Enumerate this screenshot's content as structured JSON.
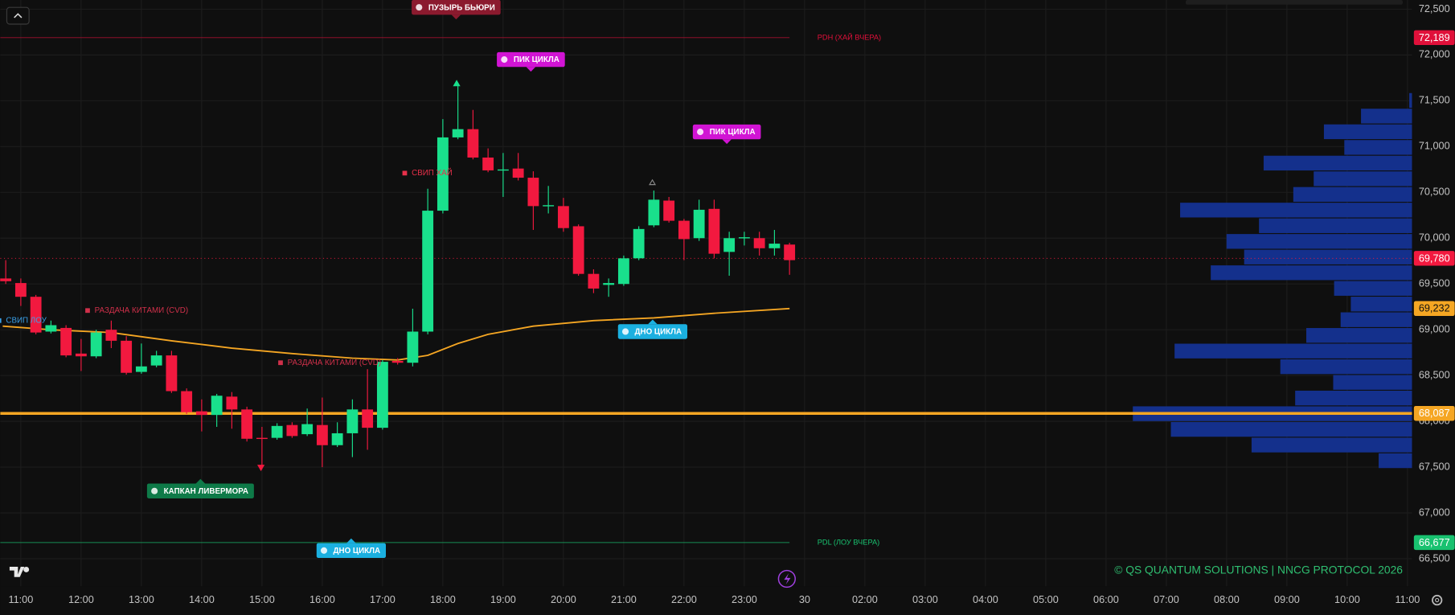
{
  "chart_data": {
    "type": "candlestick",
    "xlim": [
      10.66,
      34.075
    ],
    "ylim": [
      66200,
      72600
    ],
    "xticks": [
      {
        "value": 11,
        "label": "11:00"
      },
      {
        "value": 12,
        "label": "12:00"
      },
      {
        "value": 13,
        "label": "13:00"
      },
      {
        "value": 14,
        "label": "14:00"
      },
      {
        "value": 15,
        "label": "15:00"
      },
      {
        "value": 16,
        "label": "16:00"
      },
      {
        "value": 17,
        "label": "17:00"
      },
      {
        "value": 18,
        "label": "18:00"
      },
      {
        "value": 19,
        "label": "19:00"
      },
      {
        "value": 20,
        "label": "20:00"
      },
      {
        "value": 21,
        "label": "21:00"
      },
      {
        "value": 22,
        "label": "22:00"
      },
      {
        "value": 23,
        "label": "23:00"
      },
      {
        "value": 24,
        "label": "30"
      },
      {
        "value": 25,
        "label": "02:00"
      },
      {
        "value": 26,
        "label": "03:00"
      },
      {
        "value": 27,
        "label": "04:00"
      },
      {
        "value": 28,
        "label": "05:00"
      },
      {
        "value": 29,
        "label": "06:00"
      },
      {
        "value": 30,
        "label": "07:00"
      },
      {
        "value": 31,
        "label": "08:00"
      },
      {
        "value": 32,
        "label": "09:00"
      },
      {
        "value": 33,
        "label": "10:00"
      },
      {
        "value": 34,
        "label": "11:00"
      }
    ],
    "yticks": [
      {
        "value": 66500,
        "label": "66,500"
      },
      {
        "value": 67000,
        "label": "67,000"
      },
      {
        "value": 67500,
        "label": "67,500"
      },
      {
        "value": 68000,
        "label": "68,000"
      },
      {
        "value": 68500,
        "label": "68,500"
      },
      {
        "value": 69000,
        "label": "69,000"
      },
      {
        "value": 69500,
        "label": "69,500"
      },
      {
        "value": 70000,
        "label": "70,000"
      },
      {
        "value": 70500,
        "label": "70,500"
      },
      {
        "value": 71000,
        "label": "71,000"
      },
      {
        "value": 71500,
        "label": "71,500"
      },
      {
        "value": 72000,
        "label": "72,000"
      },
      {
        "value": 72500,
        "label": "72,500"
      }
    ],
    "grid": true,
    "up_color": "#19e08c",
    "down_color": "#f2193f",
    "x": [
      10.75,
      11,
      11.25,
      11.5,
      11.75,
      12,
      12.25,
      12.5,
      12.75,
      13,
      13.25,
      13.5,
      13.75,
      14,
      14.25,
      14.5,
      14.75,
      15,
      15.25,
      15.5,
      15.75,
      16,
      16.25,
      16.5,
      16.75,
      17,
      17.25,
      17.5,
      17.75,
      18,
      18.25,
      18.5,
      18.75,
      19,
      19.25,
      19.5,
      19.75,
      20,
      20.25,
      20.5,
      20.75,
      21,
      21.25,
      21.5,
      21.75,
      22,
      22.25,
      22.5,
      22.75,
      23,
      23.25,
      23.5,
      23.75
    ],
    "open": [
      69560,
      69510,
      69360,
      68980,
      69020,
      68740,
      68710,
      69000,
      68880,
      68540,
      68610,
      68720,
      68330,
      68110,
      68070,
      68270,
      68130,
      67820,
      67820,
      67960,
      67860,
      67960,
      67740,
      67870,
      68130,
      67930,
      68660,
      68640,
      68980,
      70300,
      71100,
      71190,
      70880,
      70740,
      70760,
      70660,
      70350,
      70350,
      70130,
      69610,
      69490,
      69500,
      69780,
      70140,
      70410,
      70190,
      70000,
      70320,
      69850,
      70000,
      70000,
      69890,
      69930
    ],
    "high": [
      69760,
      69560,
      69380,
      69100,
      69050,
      68900,
      69000,
      69100,
      68930,
      68850,
      68770,
      68770,
      68360,
      68240,
      68300,
      68320,
      68160,
      67940,
      67980,
      67990,
      68140,
      68260,
      67990,
      68240,
      68570,
      68670,
      68690,
      69230,
      70540,
      71300,
      71660,
      71400,
      70980,
      70930,
      70930,
      70730,
      70570,
      70440,
      70150,
      69660,
      69560,
      69810,
      70130,
      70520,
      70450,
      70210,
      70420,
      70420,
      70070,
      70070,
      70070,
      70090,
      69950
    ],
    "low": [
      69500,
      69260,
      68950,
      68960,
      68700,
      68550,
      68690,
      68800,
      68510,
      68520,
      68590,
      68310,
      68080,
      67890,
      67940,
      67920,
      67780,
      67480,
      67800,
      67820,
      67840,
      67500,
      67720,
      67610,
      67690,
      67910,
      68620,
      68600,
      68950,
      70270,
      71080,
      70860,
      70720,
      70450,
      70630,
      70090,
      70270,
      70070,
      69590,
      69400,
      69360,
      69480,
      69760,
      70120,
      70170,
      69760,
      69970,
      69780,
      69590,
      69920,
      69810,
      69810,
      69600
    ],
    "close": [
      69530,
      69360,
      68970,
      69050,
      68720,
      68710,
      68970,
      68880,
      68530,
      68600,
      68720,
      68330,
      68100,
      68070,
      68280,
      68130,
      67810,
      67810,
      67950,
      67840,
      67970,
      67740,
      67870,
      68130,
      67930,
      68650,
      68640,
      68980,
      70300,
      71100,
      71190,
      70880,
      70740,
      70750,
      70660,
      70350,
      70360,
      70110,
      69610,
      69450,
      69510,
      69780,
      70100,
      70420,
      70190,
      69990,
      70310,
      69830,
      70000,
      70010,
      69890,
      69940,
      69760
    ],
    "ma": {
      "color": "#f5a623",
      "x": [
        10.7,
        11.5,
        12.5,
        13.5,
        14.5,
        15.5,
        16.5,
        17.25,
        17.75,
        18.25,
        18.75,
        19.5,
        20.5,
        21.5,
        22.5,
        23.75
      ],
      "values": [
        69040,
        69000,
        68970,
        68880,
        68800,
        68740,
        68690,
        68670,
        68720,
        68850,
        68950,
        69040,
        69100,
        69130,
        69180,
        69232
      ],
      "value_label": "69,232"
    },
    "price_lines": [
      {
        "value": 72189,
        "label": "72,189",
        "color": "#e0103a",
        "style": "thin",
        "text": "PDH (ХАЙ ВЧЕРА)"
      },
      {
        "value": 69780,
        "label": "69,780",
        "color": "#f2193f",
        "style": "dotted"
      },
      {
        "value": 68087,
        "label": "68,087",
        "color": "#f5a623",
        "style": "thick"
      },
      {
        "value": 66677,
        "label": "66,677",
        "color": "#19c270",
        "style": "thin",
        "text": "PDL (ЛОУ ВЧЕРА)"
      }
    ],
    "profile": {
      "color": "#14308c",
      "bins": [
        67480,
        67651,
        67822,
        67993,
        68164,
        68335,
        68506,
        68677,
        68848,
        69019,
        69190,
        69361,
        69532,
        69703,
        69874,
        70045,
        70216,
        70387,
        70558,
        70729,
        70900,
        71071,
        71242,
        71413,
        71584
      ],
      "values": [
        36,
        173,
        260,
        301,
        126,
        85,
        142,
        256,
        114,
        77,
        66,
        84,
        217,
        181,
        200,
        165,
        250,
        128,
        106,
        160,
        73,
        95,
        55,
        3
      ]
    },
    "annotations": [
      {
        "text": "ПУЗЫРЬ БЬЮРИ",
        "x": 18.22,
        "y": 72520,
        "color": "#8b1a2e",
        "style": "box",
        "pointer": "down"
      },
      {
        "text": "ПИК ЦИКЛА",
        "x": 19.46,
        "y": 71950,
        "color": "#d114d4",
        "style": "box",
        "pointer": "down"
      },
      {
        "text": "ПИК ЦИКЛА",
        "x": 22.71,
        "y": 71160,
        "color": "#d114d4",
        "style": "box",
        "pointer": "down"
      },
      {
        "text": "ДНО ЦИКЛА",
        "x": 21.48,
        "y": 68980,
        "color": "#1bb0e0",
        "style": "box",
        "pointer": "up"
      },
      {
        "text": "ДНО ЦИКЛА",
        "x": 16.48,
        "y": 66590,
        "color": "#1bb0e0",
        "style": "box",
        "pointer": "up"
      },
      {
        "text": "КАПКАН ЛИВЕРМОРА",
        "x": 13.98,
        "y": 67240,
        "color": "#0e7a48",
        "style": "box",
        "pointer": "up"
      },
      {
        "text": "РАЗДАЧА КИТАМИ (CVD)",
        "x": 13.0,
        "y": 69210,
        "color": "#d0304a",
        "style": "text"
      },
      {
        "text": "РАЗДАЧА КИТАМИ (CVD)",
        "x": 16.2,
        "y": 68640,
        "color": "#d0304a",
        "style": "text"
      },
      {
        "text": "СВИП ЛОУ",
        "x": 11.09,
        "y": 69100,
        "color": "#3aa0e8",
        "style": "text"
      },
      {
        "text": "СВИП ХАЙ",
        "x": 17.82,
        "y": 70710,
        "color": "#e8304a",
        "style": "text"
      }
    ],
    "watermark": "© QS QUANTUM SOLUTIONS | NNCG PROTOCOL 2026"
  }
}
